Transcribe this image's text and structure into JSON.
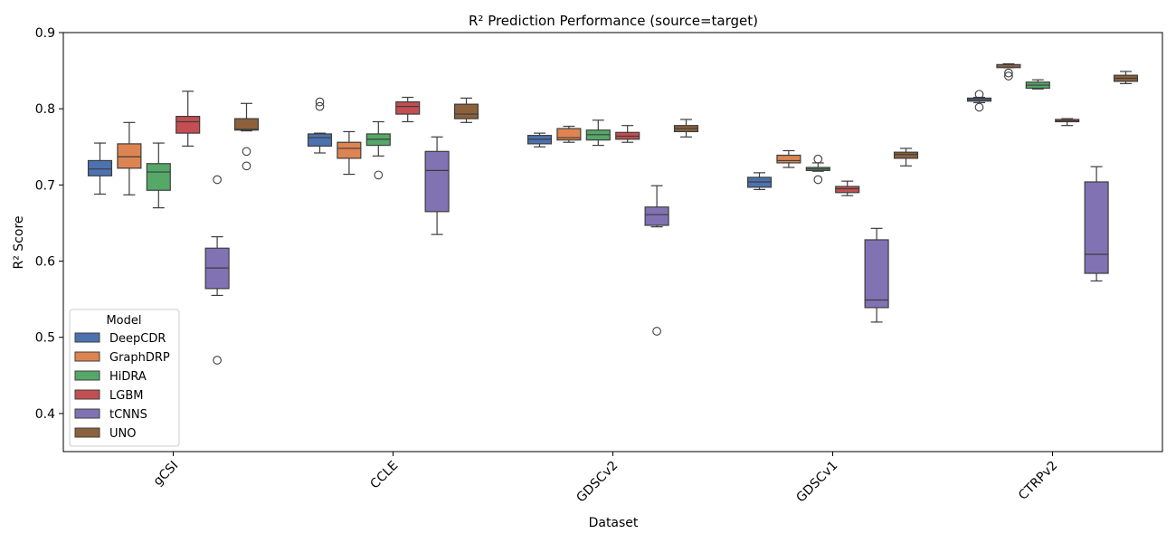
{
  "chart_data": {
    "type": "box",
    "title": "R² Prediction Performance (source=target)",
    "xlabel": "Dataset",
    "ylabel": "R² Score",
    "ylim": [
      0.35,
      0.9
    ],
    "yticks": [
      "0.4",
      "0.5",
      "0.6",
      "0.7",
      "0.8",
      "0.9"
    ],
    "categories": [
      "gCSI",
      "CCLE",
      "GDSCv2",
      "GDSCv1",
      "CTRPv2"
    ],
    "legend": {
      "title": "Model",
      "position": "lower-left"
    },
    "grid": false,
    "series": [
      {
        "name": "DeepCDR",
        "color": "#4c72b0",
        "boxes": [
          {
            "whislo": 0.688,
            "q1": 0.712,
            "med": 0.721,
            "q3": 0.732,
            "whishi": 0.755,
            "fliers": []
          },
          {
            "whislo": 0.742,
            "q1": 0.751,
            "med": 0.762,
            "q3": 0.767,
            "whishi": 0.768,
            "fliers": [
              0.803,
              0.809
            ]
          },
          {
            "whislo": 0.75,
            "q1": 0.754,
            "med": 0.76,
            "q3": 0.765,
            "whishi": 0.768,
            "fliers": []
          },
          {
            "whislo": 0.694,
            "q1": 0.697,
            "med": 0.704,
            "q3": 0.71,
            "whishi": 0.716,
            "fliers": []
          },
          {
            "whislo": 0.808,
            "q1": 0.81,
            "med": 0.812,
            "q3": 0.814,
            "whishi": 0.815,
            "fliers": [
              0.802,
              0.819
            ]
          }
        ]
      },
      {
        "name": "GraphDRP",
        "color": "#dd8452",
        "boxes": [
          {
            "whislo": 0.687,
            "q1": 0.722,
            "med": 0.737,
            "q3": 0.754,
            "whishi": 0.782,
            "fliers": []
          },
          {
            "whislo": 0.714,
            "q1": 0.735,
            "med": 0.748,
            "q3": 0.756,
            "whishi": 0.77,
            "fliers": []
          },
          {
            "whislo": 0.756,
            "q1": 0.759,
            "med": 0.762,
            "q3": 0.774,
            "whishi": 0.777,
            "fliers": []
          },
          {
            "whislo": 0.723,
            "q1": 0.729,
            "med": 0.732,
            "q3": 0.739,
            "whishi": 0.745,
            "fliers": []
          },
          {
            "whislo": 0.854,
            "q1": 0.854,
            "med": 0.856,
            "q3": 0.858,
            "whishi": 0.859,
            "fliers": [
              0.843,
              0.847
            ]
          }
        ]
      },
      {
        "name": "HiDRA",
        "color": "#55a868",
        "boxes": [
          {
            "whislo": 0.67,
            "q1": 0.693,
            "med": 0.717,
            "q3": 0.728,
            "whishi": 0.755,
            "fliers": []
          },
          {
            "whislo": 0.738,
            "q1": 0.752,
            "med": 0.76,
            "q3": 0.767,
            "whishi": 0.783,
            "fliers": [
              0.713
            ]
          },
          {
            "whislo": 0.752,
            "q1": 0.759,
            "med": 0.766,
            "q3": 0.772,
            "whishi": 0.785,
            "fliers": []
          },
          {
            "whislo": 0.718,
            "q1": 0.719,
            "med": 0.721,
            "q3": 0.723,
            "whishi": 0.729,
            "fliers": [
              0.707,
              0.734
            ]
          },
          {
            "whislo": 0.826,
            "q1": 0.827,
            "med": 0.831,
            "q3": 0.835,
            "whishi": 0.838,
            "fliers": []
          }
        ]
      },
      {
        "name": "LGBM",
        "color": "#c44e52",
        "boxes": [
          {
            "whislo": 0.751,
            "q1": 0.768,
            "med": 0.783,
            "q3": 0.79,
            "whishi": 0.823,
            "fliers": []
          },
          {
            "whislo": 0.783,
            "q1": 0.793,
            "med": 0.803,
            "q3": 0.809,
            "whishi": 0.815,
            "fliers": []
          },
          {
            "whislo": 0.756,
            "q1": 0.76,
            "med": 0.764,
            "q3": 0.769,
            "whishi": 0.778,
            "fliers": []
          },
          {
            "whislo": 0.686,
            "q1": 0.69,
            "med": 0.695,
            "q3": 0.698,
            "whishi": 0.705,
            "fliers": []
          },
          {
            "whislo": 0.778,
            "q1": 0.783,
            "med": 0.784,
            "q3": 0.786,
            "whishi": 0.787,
            "fliers": []
          }
        ]
      },
      {
        "name": "tCNNS",
        "color": "#8172b3",
        "boxes": [
          {
            "whislo": 0.555,
            "q1": 0.564,
            "med": 0.591,
            "q3": 0.617,
            "whishi": 0.632,
            "fliers": [
              0.47,
              0.707
            ]
          },
          {
            "whislo": 0.635,
            "q1": 0.665,
            "med": 0.719,
            "q3": 0.744,
            "whishi": 0.763,
            "fliers": []
          },
          {
            "whislo": 0.645,
            "q1": 0.647,
            "med": 0.661,
            "q3": 0.671,
            "whishi": 0.699,
            "fliers": [
              0.508
            ]
          },
          {
            "whislo": 0.52,
            "q1": 0.539,
            "med": 0.549,
            "q3": 0.628,
            "whishi": 0.643,
            "fliers": []
          },
          {
            "whislo": 0.574,
            "q1": 0.584,
            "med": 0.609,
            "q3": 0.704,
            "whishi": 0.724,
            "fliers": []
          }
        ]
      },
      {
        "name": "UNO",
        "color": "#8c613c",
        "boxes": [
          {
            "whislo": 0.771,
            "q1": 0.772,
            "med": 0.773,
            "q3": 0.787,
            "whishi": 0.807,
            "fliers": [
              0.725,
              0.744
            ]
          },
          {
            "whislo": 0.782,
            "q1": 0.787,
            "med": 0.793,
            "q3": 0.806,
            "whishi": 0.814,
            "fliers": []
          },
          {
            "whislo": 0.763,
            "q1": 0.77,
            "med": 0.774,
            "q3": 0.778,
            "whishi": 0.786,
            "fliers": []
          },
          {
            "whislo": 0.725,
            "q1": 0.735,
            "med": 0.74,
            "q3": 0.743,
            "whishi": 0.748,
            "fliers": []
          },
          {
            "whislo": 0.833,
            "q1": 0.836,
            "med": 0.84,
            "q3": 0.844,
            "whishi": 0.849,
            "fliers": []
          }
        ]
      }
    ]
  }
}
